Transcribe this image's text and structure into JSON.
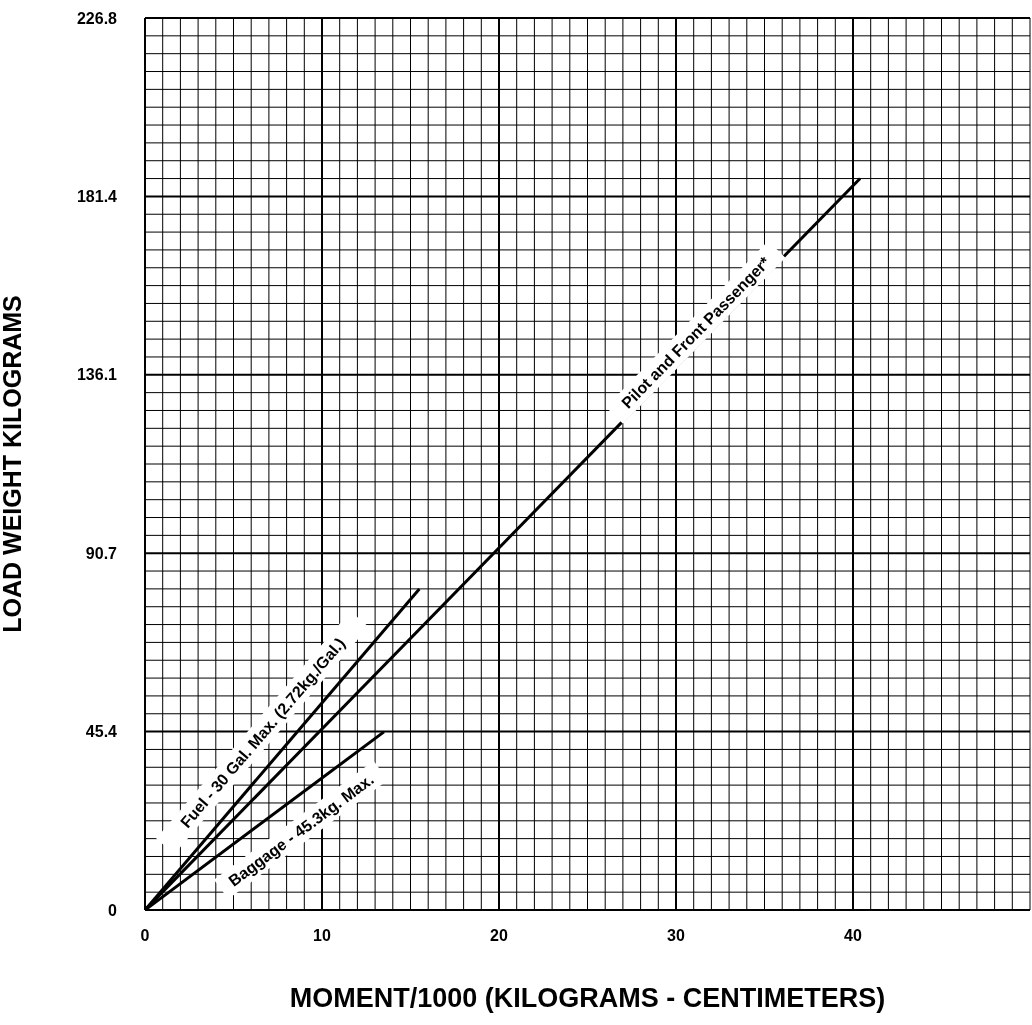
{
  "chart_data": {
    "type": "line",
    "xlabel": "MOMENT/1000 (KILOGRAMS - CENTIMETERS)",
    "ylabel": "LOAD WEIGHT  KILOGRAMS",
    "series": [
      {
        "color": "#000000",
        "x": [
          0,
          40.4
        ],
        "values": [
          0,
          186
        ]
      },
      {
        "color": "#000000",
        "x": [
          0,
          15.5
        ],
        "values": [
          0,
          81.6
        ]
      },
      {
        "color": "#000000",
        "x": [
          0,
          13.5
        ],
        "values": [
          0,
          45.3
        ]
      }
    ],
    "annotations": [
      "Pilot and Front Passenger*",
      "Fuel - 30 Gal. Max. (2.72kg./Gal.)",
      "Baggage - 45.3kg. Max."
    ],
    "xlim": [
      0,
      50
    ],
    "ylim": [
      0,
      226.8
    ],
    "xticks": [
      0,
      {
        "value": 1,
        "label": null
      },
      {
        "value": 2,
        "label": null
      },
      {
        "value": 3,
        "label": null
      },
      {
        "value": 4,
        "label": null
      },
      {
        "value": 5,
        "label": null
      },
      {
        "value": 6,
        "label": null
      },
      {
        "value": 7,
        "label": null
      },
      {
        "value": 8,
        "label": null
      },
      {
        "value": 9,
        "label": null
      },
      10,
      {
        "value": 11,
        "label": null
      },
      {
        "value": 12,
        "label": null
      },
      {
        "value": 13,
        "label": null
      },
      {
        "value": 14,
        "label": null
      },
      {
        "value": 15,
        "label": null
      },
      {
        "value": 16,
        "label": null
      },
      {
        "value": 17,
        "label": null
      },
      {
        "value": 18,
        "label": null
      },
      {
        "value": 19,
        "label": null
      },
      20,
      {
        "value": 21,
        "label": null
      },
      {
        "value": 22,
        "label": null
      },
      {
        "value": 23,
        "label": null
      },
      {
        "value": 24,
        "label": null
      },
      {
        "value": 25,
        "label": null
      },
      {
        "value": 26,
        "label": null
      },
      {
        "value": 27,
        "label": null
      },
      {
        "value": 28,
        "label": null
      },
      {
        "value": 29,
        "label": null
      },
      30,
      {
        "value": 31,
        "label": null
      },
      {
        "value": 32,
        "label": null
      },
      {
        "value": 33,
        "label": null
      },
      {
        "value": 34,
        "label": null
      },
      {
        "value": 35,
        "label": null
      },
      {
        "value": 36,
        "label": null
      },
      {
        "value": 37,
        "label": null
      },
      {
        "value": 38,
        "label": null
      },
      {
        "value": 39,
        "label": null
      },
      40,
      {
        "value": 41,
        "label": null
      },
      {
        "value": 42,
        "label": null
      },
      {
        "value": 43,
        "label": null
      },
      {
        "value": 44,
        "label": null
      },
      {
        "value": 45,
        "label": null
      },
      {
        "value": 46,
        "label": null
      },
      {
        "value": 47,
        "label": null
      },
      {
        "value": 48,
        "label": null
      },
      {
        "value": 49,
        "label": null
      },
      {
        "value": 50,
        "label": null
      }
    ],
    "yticks": [
      0,
      {
        "value": 4.536,
        "label": null
      },
      {
        "value": 9.072,
        "label": null
      },
      {
        "value": 13.608,
        "label": null
      },
      {
        "value": 18.144,
        "label": null
      },
      {
        "value": 22.68,
        "label": null
      },
      {
        "value": 27.216,
        "label": null
      },
      {
        "value": 31.752,
        "label": null
      },
      {
        "value": 36.288,
        "label": null
      },
      {
        "value": 40.824,
        "label": null
      },
      {
        "value": 45.36,
        "label": "45.4"
      },
      {
        "value": 49.896,
        "label": null
      },
      {
        "value": 54.432,
        "label": null
      },
      {
        "value": 58.968,
        "label": null
      },
      {
        "value": 63.504,
        "label": null
      },
      {
        "value": 68.04,
        "label": null
      },
      {
        "value": 72.576,
        "label": null
      },
      {
        "value": 77.112,
        "label": null
      },
      {
        "value": 81.648,
        "label": null
      },
      {
        "value": 86.184,
        "label": null
      },
      {
        "value": 90.72,
        "label": "90.7"
      },
      {
        "value": 95.256,
        "label": null
      },
      {
        "value": 99.792,
        "label": null
      },
      {
        "value": 104.328,
        "label": null
      },
      {
        "value": 108.864,
        "label": null
      },
      {
        "value": 113.4,
        "label": null
      },
      {
        "value": 117.936,
        "label": null
      },
      {
        "value": 122.472,
        "label": null
      },
      {
        "value": 127.008,
        "label": null
      },
      {
        "value": 131.544,
        "label": null
      },
      {
        "value": 136.08,
        "label": "136.1"
      },
      {
        "value": 140.616,
        "label": null
      },
      {
        "value": 145.152,
        "label": null
      },
      {
        "value": 149.688,
        "label": null
      },
      {
        "value": 154.224,
        "label": null
      },
      {
        "value": 158.76,
        "label": null
      },
      {
        "value": 163.296,
        "label": null
      },
      {
        "value": 167.832,
        "label": null
      },
      {
        "value": 172.368,
        "label": null
      },
      {
        "value": 176.904,
        "label": null
      },
      {
        "value": 181.44,
        "label": "181.4"
      },
      {
        "value": 185.976,
        "label": null
      },
      {
        "value": 190.512,
        "label": null
      },
      {
        "value": 195.048,
        "label": null
      },
      {
        "value": 199.584,
        "label": null
      },
      {
        "value": 204.12,
        "label": null
      },
      {
        "value": 208.656,
        "label": null
      },
      {
        "value": 213.192,
        "label": null
      },
      {
        "value": 217.728,
        "label": null
      },
      {
        "value": 222.264,
        "label": null
      },
      {
        "value": 226.8,
        "label": "226.8"
      }
    ],
    "grid": true,
    "marker": "none",
    "line_style": "solid"
  }
}
